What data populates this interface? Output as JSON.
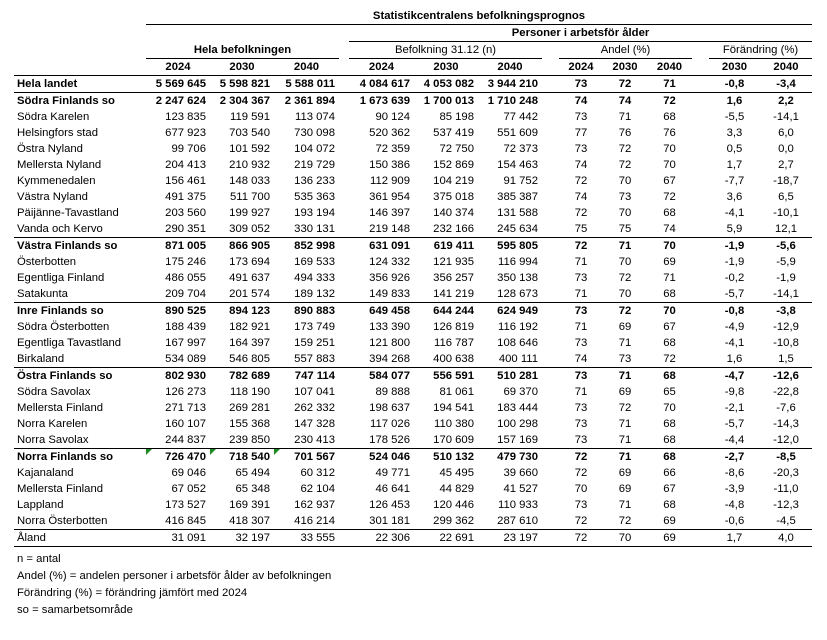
{
  "header": {
    "title": "Statistikcentralens befolkningsprognos",
    "subtitle": "Personer i arbetsför ålder",
    "group_total": "Hela befolkningen",
    "group_n": "Befolkning 31.12 (n)",
    "group_share": "Andel (%)",
    "group_change": "Förändring (%)",
    "years3": [
      "2024",
      "2030",
      "2040"
    ],
    "years2": [
      "2030",
      "2040"
    ]
  },
  "total": {
    "name": "Hela landet",
    "values": [
      "5 569 645",
      "5 598 821",
      "5 588 011",
      "4 084 617",
      "4 053 082",
      "3 944 210",
      "73",
      "72",
      "71",
      "-0,8",
      "-3,4"
    ]
  },
  "groups": [
    {
      "summary": {
        "name": "Södra Finlands so",
        "values": [
          "2 247 624",
          "2 304 367",
          "2 361 894",
          "1 673 639",
          "1 700 013",
          "1 710 248",
          "74",
          "74",
          "72",
          "1,6",
          "2,2"
        ]
      },
      "members": [
        {
          "name": "Södra Karelen",
          "values": [
            "123 835",
            "119 591",
            "113 074",
            "90 124",
            "85 198",
            "77 442",
            "73",
            "71",
            "68",
            "-5,5",
            "-14,1"
          ]
        },
        {
          "name": "Helsingfors stad",
          "values": [
            "677 923",
            "703 540",
            "730 098",
            "520 362",
            "537 419",
            "551 609",
            "77",
            "76",
            "76",
            "3,3",
            "6,0"
          ]
        },
        {
          "name": "Östra Nyland",
          "values": [
            "99 706",
            "101 592",
            "104 072",
            "72 359",
            "72 750",
            "72 373",
            "73",
            "72",
            "70",
            "0,5",
            "0,0"
          ]
        },
        {
          "name": "Mellersta Nyland",
          "values": [
            "204 413",
            "210 932",
            "219 729",
            "150 386",
            "152 869",
            "154 463",
            "74",
            "72",
            "70",
            "1,7",
            "2,7"
          ]
        },
        {
          "name": "Kymmenedalen",
          "values": [
            "156 461",
            "148 033",
            "136 233",
            "112 909",
            "104 219",
            "91 752",
            "72",
            "70",
            "67",
            "-7,7",
            "-18,7"
          ]
        },
        {
          "name": "Västra Nyland",
          "values": [
            "491 375",
            "511 700",
            "535 363",
            "361 954",
            "375 018",
            "385 387",
            "74",
            "73",
            "72",
            "3,6",
            "6,5"
          ]
        },
        {
          "name": "Päijänne-Tavastland",
          "values": [
            "203 560",
            "199 927",
            "193 194",
            "146 397",
            "140 374",
            "131 588",
            "72",
            "70",
            "68",
            "-4,1",
            "-10,1"
          ]
        },
        {
          "name": "Vanda och Kervo",
          "values": [
            "290 351",
            "309 052",
            "330 131",
            "219 148",
            "232 166",
            "245 634",
            "75",
            "75",
            "74",
            "5,9",
            "12,1"
          ]
        }
      ]
    },
    {
      "summary": {
        "name": "Västra Finlands so",
        "values": [
          "871 005",
          "866 905",
          "852 998",
          "631 091",
          "619 411",
          "595 805",
          "72",
          "71",
          "70",
          "-1,9",
          "-5,6"
        ]
      },
      "members": [
        {
          "name": "Österbotten",
          "values": [
            "175 246",
            "173 694",
            "169 533",
            "124 332",
            "121 935",
            "116 994",
            "71",
            "70",
            "69",
            "-1,9",
            "-5,9"
          ]
        },
        {
          "name": "Egentliga Finland",
          "values": [
            "486 055",
            "491 637",
            "494 333",
            "356 926",
            "356 257",
            "350 138",
            "73",
            "72",
            "71",
            "-0,2",
            "-1,9"
          ]
        },
        {
          "name": "Satakunta",
          "values": [
            "209 704",
            "201 574",
            "189 132",
            "149 833",
            "141 219",
            "128 673",
            "71",
            "70",
            "68",
            "-5,7",
            "-14,1"
          ]
        }
      ]
    },
    {
      "summary": {
        "name": "Inre Finlands so",
        "values": [
          "890 525",
          "894 123",
          "890 883",
          "649 458",
          "644 244",
          "624 949",
          "73",
          "72",
          "70",
          "-0,8",
          "-3,8"
        ]
      },
      "members": [
        {
          "name": "Södra Österbotten",
          "values": [
            "188 439",
            "182 921",
            "173 749",
            "133 390",
            "126 819",
            "116 192",
            "71",
            "69",
            "67",
            "-4,9",
            "-12,9"
          ]
        },
        {
          "name": "Egentliga Tavastland",
          "values": [
            "167 997",
            "164 397",
            "159 251",
            "121 800",
            "116 787",
            "108 646",
            "73",
            "71",
            "68",
            "-4,1",
            "-10,8"
          ]
        },
        {
          "name": "Birkaland",
          "values": [
            "534 089",
            "546 805",
            "557 883",
            "394 268",
            "400 638",
            "400 111",
            "74",
            "73",
            "72",
            "1,6",
            "1,5"
          ]
        }
      ]
    },
    {
      "summary": {
        "name": "Östra Finlands so",
        "values": [
          "802 930",
          "782 689",
          "747 114",
          "584 077",
          "556 591",
          "510 281",
          "73",
          "71",
          "68",
          "-4,7",
          "-12,6"
        ]
      },
      "members": [
        {
          "name": "Södra Savolax",
          "values": [
            "126 273",
            "118 190",
            "107 041",
            "89 888",
            "81 061",
            "69 370",
            "71",
            "69",
            "65",
            "-9,8",
            "-22,8"
          ]
        },
        {
          "name": "Mellersta Finland",
          "values": [
            "271 713",
            "269 281",
            "262 332",
            "198 637",
            "194 541",
            "183 444",
            "73",
            "72",
            "70",
            "-2,1",
            "-7,6"
          ]
        },
        {
          "name": "Norra Karelen",
          "values": [
            "160 107",
            "155 368",
            "147 328",
            "117 026",
            "110 380",
            "100 298",
            "73",
            "71",
            "68",
            "-5,7",
            "-14,3"
          ]
        },
        {
          "name": "Norra Savolax",
          "values": [
            "244 837",
            "239 850",
            "230 413",
            "178 526",
            "170 609",
            "157 169",
            "73",
            "71",
            "68",
            "-4,4",
            "-12,0"
          ]
        }
      ]
    },
    {
      "summary": {
        "name": "Norra Finlands so",
        "values": [
          "726 470",
          "718 540",
          "701 567",
          "524 046",
          "510 132",
          "479 730",
          "72",
          "71",
          "68",
          "-2,7",
          "-8,5"
        ],
        "comment_markers": 3
      },
      "members": [
        {
          "name": "Kajanaland",
          "values": [
            "69 046",
            "65 494",
            "60 312",
            "49 771",
            "45 495",
            "39 660",
            "72",
            "69",
            "66",
            "-8,6",
            "-20,3"
          ]
        },
        {
          "name": "Mellersta Finland",
          "values": [
            "67 052",
            "65 348",
            "62 104",
            "46 641",
            "44 829",
            "41 527",
            "70",
            "69",
            "67",
            "-3,9",
            "-11,0"
          ]
        },
        {
          "name": "Lappland",
          "values": [
            "173 527",
            "169 391",
            "162 937",
            "126 453",
            "120 446",
            "110 933",
            "73",
            "71",
            "68",
            "-4,8",
            "-12,3"
          ]
        },
        {
          "name": "Norra Österbotten",
          "values": [
            "416 845",
            "418 307",
            "416 214",
            "301 181",
            "299 362",
            "287 610",
            "72",
            "72",
            "69",
            "-0,6",
            "-4,5"
          ]
        }
      ]
    }
  ],
  "aland": {
    "name": "Åland",
    "values": [
      "31 091",
      "32 197",
      "33 555",
      "22 306",
      "22 691",
      "23 197",
      "72",
      "70",
      "69",
      "1,7",
      "4,0"
    ]
  },
  "notes": [
    "n = antal",
    "Andel (%) = andelen personer i arbetsför ålder av befolkningen",
    "Förändring (%) = förändring jämfört med 2024",
    "so = samarbetsområde"
  ],
  "colors": {
    "comment_marker": "#1f8a1f"
  }
}
